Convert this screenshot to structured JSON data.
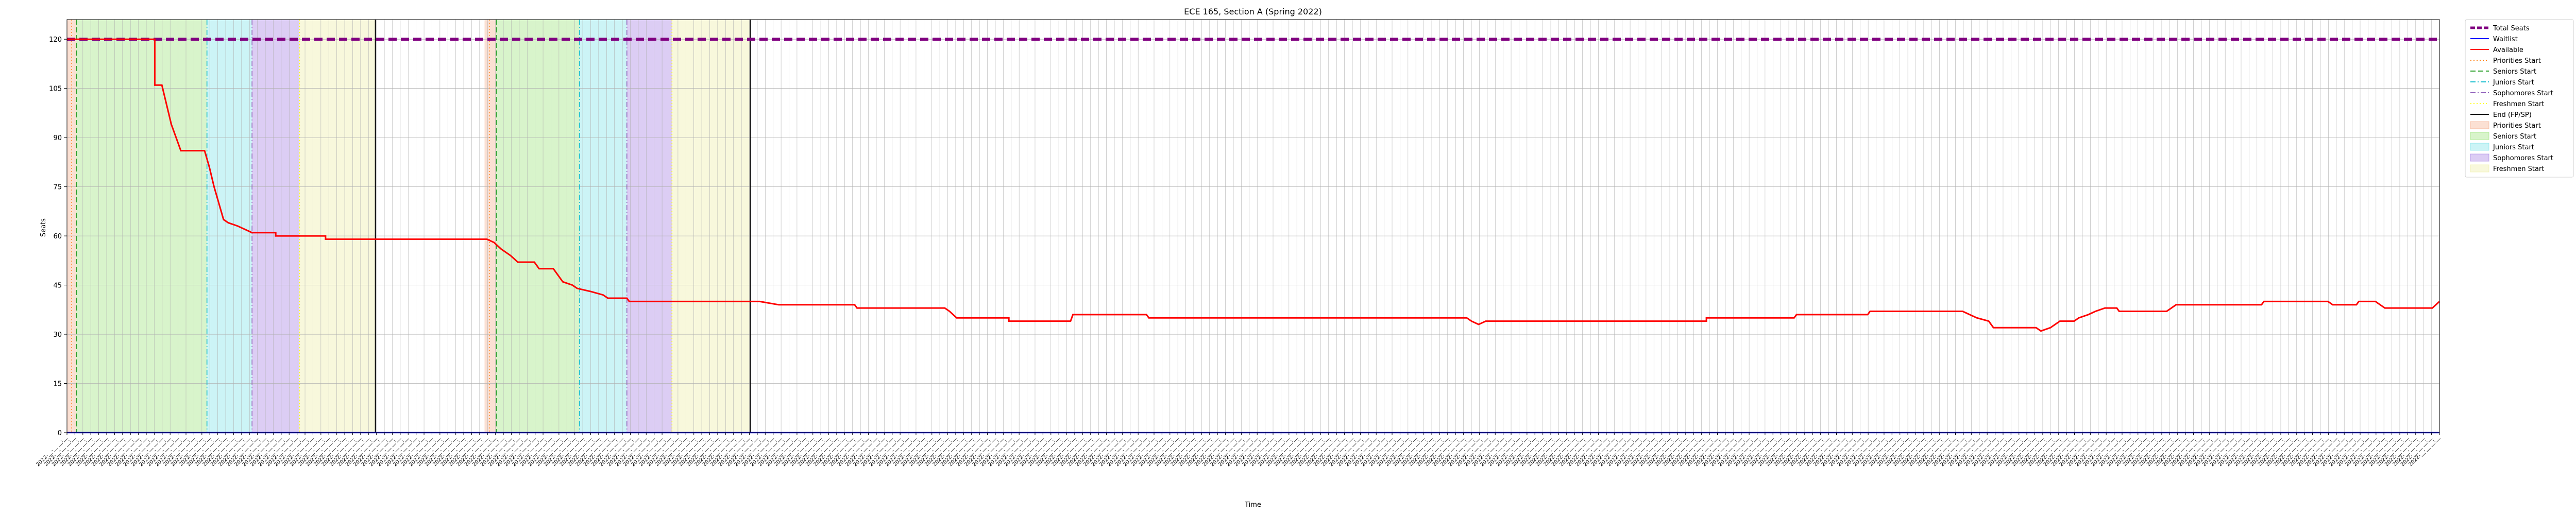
{
  "chart_data": {
    "type": "line",
    "title": "ECE 165, Section A (Spring 2022)",
    "xlabel": "Time",
    "ylabel": "Seats",
    "ylim": [
      0,
      126
    ],
    "yticks": [
      0,
      15,
      30,
      45,
      60,
      75,
      90,
      105,
      120
    ],
    "grid": true,
    "legend_position": "outside-right-top",
    "x_range": [
      0,
      1
    ],
    "x_tick_count": 300,
    "x_tick_label": "2022-__-__ __:__",
    "series": [
      {
        "name": "Total Seats",
        "color": "#800080",
        "style": "dashed",
        "points": [
          [
            0,
            120
          ],
          [
            1,
            120
          ]
        ]
      },
      {
        "name": "Waitlist",
        "color": "#0000ff",
        "style": "solid",
        "points": [
          [
            0,
            0
          ],
          [
            1,
            0
          ]
        ]
      },
      {
        "name": "Available",
        "color": "#ff0000",
        "style": "solid",
        "points": [
          [
            0,
            120
          ],
          [
            0.037,
            120
          ],
          [
            0.037,
            106
          ],
          [
            0.04,
            106
          ],
          [
            0.042,
            100
          ],
          [
            0.044,
            94
          ],
          [
            0.046,
            90
          ],
          [
            0.048,
            86
          ],
          [
            0.058,
            86
          ],
          [
            0.06,
            81
          ],
          [
            0.062,
            75
          ],
          [
            0.064,
            70
          ],
          [
            0.066,
            65
          ],
          [
            0.068,
            64
          ],
          [
            0.072,
            63
          ],
          [
            0.075,
            62
          ],
          [
            0.078,
            61
          ],
          [
            0.088,
            61
          ],
          [
            0.088,
            60
          ],
          [
            0.109,
            60
          ],
          [
            0.109,
            59
          ],
          [
            0.177,
            59
          ],
          [
            0.18,
            58
          ],
          [
            0.183,
            56
          ],
          [
            0.187,
            54
          ],
          [
            0.19,
            52
          ],
          [
            0.197,
            52
          ],
          [
            0.199,
            50
          ],
          [
            0.205,
            50
          ],
          [
            0.207,
            48
          ],
          [
            0.209,
            46
          ],
          [
            0.213,
            45
          ],
          [
            0.215,
            44
          ],
          [
            0.221,
            43
          ],
          [
            0.226,
            42
          ],
          [
            0.228,
            41
          ],
          [
            0.236,
            41
          ],
          [
            0.237,
            40
          ],
          [
            0.292,
            40
          ],
          [
            0.3,
            39
          ],
          [
            0.332,
            39
          ],
          [
            0.333,
            38
          ],
          [
            0.37,
            38
          ],
          [
            0.372,
            37
          ],
          [
            0.375,
            35
          ],
          [
            0.397,
            35
          ],
          [
            0.397,
            34
          ],
          [
            0.423,
            34
          ],
          [
            0.424,
            36
          ],
          [
            0.455,
            36
          ],
          [
            0.456,
            35
          ],
          [
            0.59,
            35
          ],
          [
            0.592,
            34
          ],
          [
            0.595,
            33
          ],
          [
            0.598,
            34
          ],
          [
            0.691,
            34
          ],
          [
            0.691,
            35
          ],
          [
            0.728,
            35
          ],
          [
            0.729,
            36
          ],
          [
            0.759,
            36
          ],
          [
            0.76,
            37
          ],
          [
            0.799,
            37
          ],
          [
            0.802,
            36
          ],
          [
            0.805,
            35
          ],
          [
            0.81,
            34
          ],
          [
            0.812,
            32
          ],
          [
            0.83,
            32
          ],
          [
            0.832,
            31
          ],
          [
            0.836,
            32
          ],
          [
            0.84,
            34
          ],
          [
            0.846,
            34
          ],
          [
            0.848,
            35
          ],
          [
            0.852,
            36
          ],
          [
            0.855,
            37
          ],
          [
            0.859,
            38
          ],
          [
            0.864,
            38
          ],
          [
            0.865,
            37
          ],
          [
            0.885,
            37
          ],
          [
            0.887,
            38
          ],
          [
            0.889,
            39
          ],
          [
            0.925,
            39
          ],
          [
            0.926,
            40
          ],
          [
            0.953,
            40
          ],
          [
            0.955,
            39
          ],
          [
            0.965,
            39
          ],
          [
            0.966,
            40
          ],
          [
            0.973,
            40
          ],
          [
            0.975,
            39
          ],
          [
            0.977,
            38
          ],
          [
            0.997,
            38
          ],
          [
            1.0,
            40
          ]
        ]
      }
    ],
    "period_lines": [
      {
        "name": "Priorities Start",
        "color": "#ff7f0e",
        "style": "dotted",
        "x": [
          0.002,
          0.178
        ]
      },
      {
        "name": "Seniors Start",
        "color": "#2ca02c",
        "style": "dashed",
        "x": [
          0.004,
          0.181
        ]
      },
      {
        "name": "Juniors Start",
        "color": "#17becf",
        "style": "dashdot",
        "x": [
          0.059,
          0.216
        ]
      },
      {
        "name": "Sophomores Start",
        "color": "#9467bd",
        "style": "dashdot",
        "x": [
          0.078,
          0.236
        ]
      },
      {
        "name": "Freshmen Start",
        "color": "#ffff00",
        "style": "dotted",
        "x": [
          0.098,
          0.255
        ]
      },
      {
        "name": "End (FP/SP)",
        "color": "#000000",
        "style": "solid",
        "x": [
          0.13,
          0.288
        ]
      }
    ],
    "period_spans": [
      {
        "name": "Priorities Start",
        "color": "#f4a582",
        "opacity": 0.35,
        "ranges": [
          [
            0.0,
            0.004
          ],
          [
            0.176,
            0.181
          ]
        ]
      },
      {
        "name": "Seniors Start",
        "color": "#8ee06a",
        "opacity": 0.35,
        "ranges": [
          [
            0.004,
            0.059
          ],
          [
            0.181,
            0.216
          ]
        ]
      },
      {
        "name": "Juniors Start",
        "color": "#6ddfe6",
        "opacity": 0.35,
        "ranges": [
          [
            0.059,
            0.078
          ],
          [
            0.216,
            0.236
          ]
        ]
      },
      {
        "name": "Sophomores Start",
        "color": "#9b6fe0",
        "opacity": 0.35,
        "ranges": [
          [
            0.078,
            0.098
          ],
          [
            0.236,
            0.255
          ]
        ]
      },
      {
        "name": "Freshmen Start",
        "color": "#ecec9a",
        "opacity": 0.35,
        "ranges": [
          [
            0.098,
            0.13
          ],
          [
            0.255,
            0.288
          ]
        ]
      }
    ],
    "legend": [
      {
        "label": "Total Seats",
        "kind": "line",
        "color": "#800080",
        "style": "thick-dashed"
      },
      {
        "label": "Waitlist",
        "kind": "line",
        "color": "#0000ff",
        "style": "solid"
      },
      {
        "label": "Available",
        "kind": "line",
        "color": "#ff0000",
        "style": "solid"
      },
      {
        "label": "Priorities Start",
        "kind": "line",
        "color": "#ff7f0e",
        "style": "dotted"
      },
      {
        "label": "Seniors Start",
        "kind": "line",
        "color": "#2ca02c",
        "style": "dashed"
      },
      {
        "label": "Juniors Start",
        "kind": "line",
        "color": "#17becf",
        "style": "dashdot"
      },
      {
        "label": "Sophomores Start",
        "kind": "line",
        "color": "#9467bd",
        "style": "dashdot"
      },
      {
        "label": "Freshmen Start",
        "kind": "line",
        "color": "#ffff00",
        "style": "dotted"
      },
      {
        "label": "End (FP/SP)",
        "kind": "line",
        "color": "#000000",
        "style": "solid"
      },
      {
        "label": "Priorities Start",
        "kind": "patch",
        "color": "#f4a582"
      },
      {
        "label": "Seniors Start",
        "kind": "patch",
        "color": "#8ee06a"
      },
      {
        "label": "Juniors Start",
        "kind": "patch",
        "color": "#6ddfe6"
      },
      {
        "label": "Sophomores Start",
        "kind": "patch",
        "color": "#9b6fe0"
      },
      {
        "label": "Freshmen Start",
        "kind": "patch",
        "color": "#ecec9a"
      }
    ]
  }
}
